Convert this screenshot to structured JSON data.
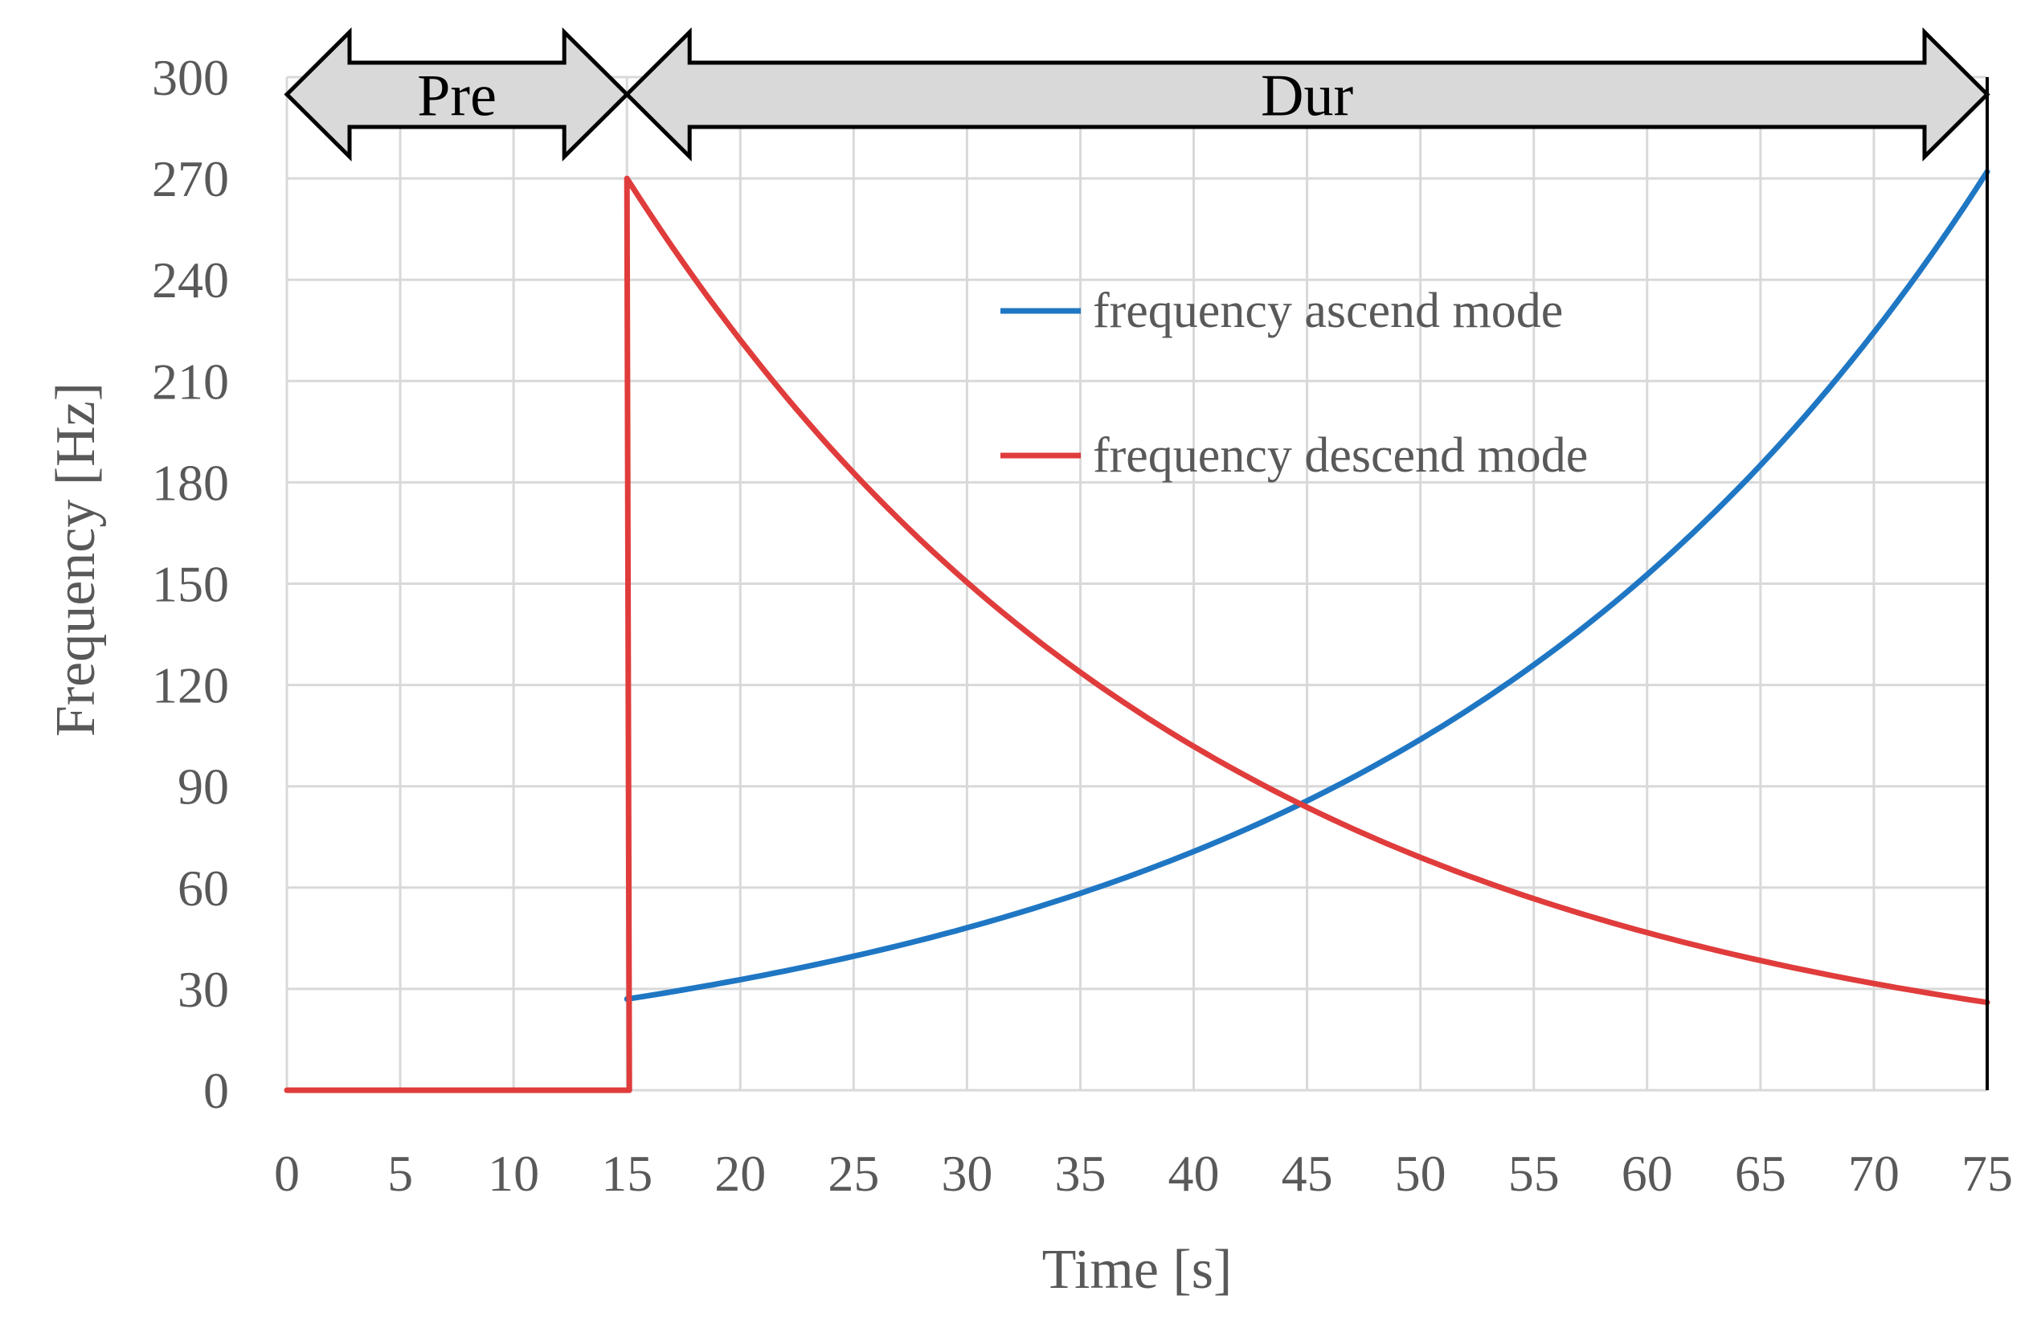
{
  "chart_data": {
    "type": "line",
    "title": "",
    "xlabel": "Time [s]",
    "ylabel": "Frequency [Hz]",
    "xlim": [
      0,
      75
    ],
    "ylim": [
      0,
      300
    ],
    "xticks": [
      0,
      5,
      10,
      15,
      20,
      25,
      30,
      35,
      40,
      45,
      50,
      55,
      60,
      65,
      70,
      75
    ],
    "yticks": [
      0,
      30,
      60,
      90,
      120,
      150,
      180,
      210,
      240,
      270,
      300
    ],
    "grid": true,
    "legend_position": "upper-right",
    "colors": {
      "ascend": "#1f77c4",
      "descend": "#e03c3c",
      "grid": "#d9d9d9",
      "arrow_fill": "#d9d9d9"
    },
    "series": [
      {
        "name": "frequency ascend mode",
        "color": "#1f77c4",
        "x": [
          15,
          20,
          25,
          30,
          35,
          40,
          45,
          50,
          55,
          60,
          65,
          70,
          75
        ],
        "y": [
          27,
          32,
          39,
          47,
          57,
          70,
          85,
          104,
          126,
          153,
          186,
          226,
          272
        ]
      },
      {
        "name": "frequency descend mode",
        "color": "#e03c3c",
        "x": [
          0,
          15,
          15,
          20,
          25,
          30,
          35,
          40,
          45,
          50,
          55,
          60,
          65,
          70,
          75
        ],
        "y": [
          0,
          0,
          270,
          221,
          183,
          151,
          125,
          103,
          85,
          70,
          58,
          47,
          39,
          32,
          26
        ]
      }
    ],
    "annotations": [
      {
        "label": "Pre",
        "x_start": 0,
        "x_end": 15
      },
      {
        "label": "Dur",
        "x_start": 15,
        "x_end": 75
      }
    ]
  }
}
